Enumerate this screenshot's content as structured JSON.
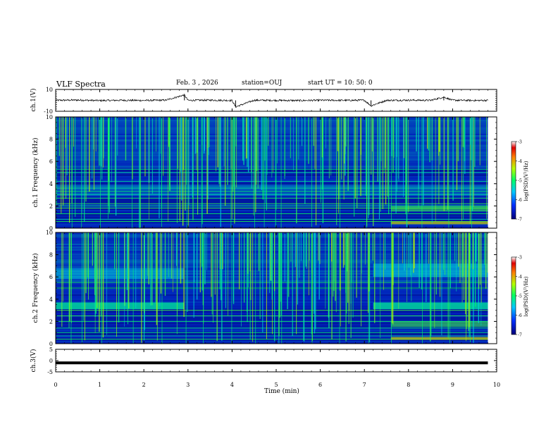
{
  "header": {
    "title": "VLF Spectra",
    "date": "Feb. 3 , 2026",
    "station": "station=OUJ",
    "start_ut": "start UT = 10: 50: 0"
  },
  "chart_data": [
    {
      "type": "line",
      "panel": "ch1-waveform",
      "ylabel": "ch.1(V)",
      "ylim": [
        -10,
        10
      ],
      "yticks": [
        "10",
        "-10"
      ],
      "x": [
        0,
        0.5,
        1,
        1.5,
        2,
        2.5,
        2.92,
        3,
        3.5,
        4,
        4.08,
        4.5,
        5,
        5.5,
        6,
        6.5,
        7,
        7.15,
        7.5,
        8,
        8.5,
        8.8,
        9,
        9.5,
        9.8
      ],
      "y": [
        0,
        0.3,
        -0.2,
        0.1,
        -0.1,
        0.2,
        5,
        0,
        0.2,
        -0.1,
        -6,
        0.1,
        0,
        -0.2,
        0.1,
        0,
        0.1,
        -5,
        0,
        0.2,
        0,
        3,
        0.1,
        -0.1,
        0
      ]
    },
    {
      "type": "heatmap",
      "panel": "ch1-spectrogram",
      "ylabel": "ch.1 Frequency (kHz)",
      "ylim": [
        0,
        10
      ],
      "yticks": [
        "0",
        "2",
        "4",
        "6",
        "8",
        "10"
      ],
      "colorbar": {
        "label": "log(PSD)(V²/Hz)",
        "range": [
          -7,
          -3
        ],
        "ticks": [
          "-3",
          "-4",
          "-5",
          "-6",
          "-7"
        ]
      }
    },
    {
      "type": "heatmap",
      "panel": "ch2-spectrogram",
      "ylabel": "ch.2 Frequency (kHz)",
      "ylim": [
        0,
        10
      ],
      "yticks": [
        "0",
        "2",
        "4",
        "6",
        "8",
        "10"
      ],
      "colorbar": {
        "label": "log(PSD)(V²/Hz)",
        "range": [
          -7,
          -3
        ],
        "ticks": [
          "-3",
          "-4",
          "-5",
          "-6",
          "-7"
        ]
      }
    },
    {
      "type": "line",
      "panel": "ch3-waveform",
      "ylabel": "ch.3(V)",
      "ylim": [
        -5,
        5
      ],
      "yticks": [
        "5",
        "0",
        "-5"
      ],
      "x": [
        0,
        9.8
      ],
      "y": [
        -1,
        -1
      ]
    }
  ],
  "xaxis": {
    "label": "Time (min)",
    "range": [
      0,
      10
    ],
    "ticks": [
      "0",
      "1",
      "2",
      "3",
      "4",
      "5",
      "6",
      "7",
      "8",
      "9",
      "10"
    ]
  }
}
